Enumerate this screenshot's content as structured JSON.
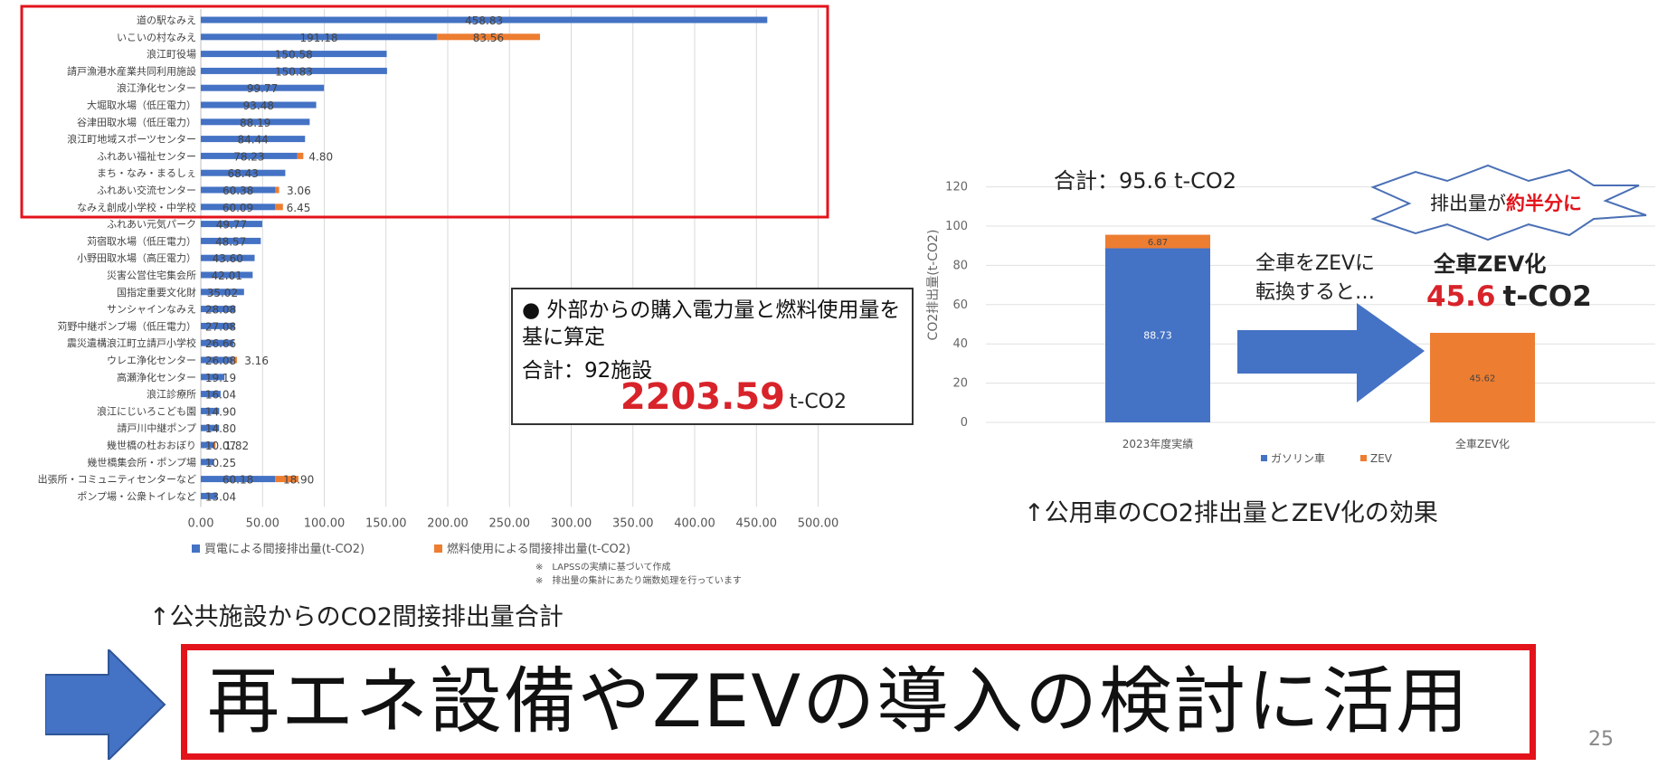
{
  "chart_data": [
    {
      "type": "bar",
      "orientation": "horizontal",
      "stacked": true,
      "categories": [
        "道の駅なみえ",
        "いこいの村なみえ",
        "浪江町役場",
        "請戸漁港水産業共同利用施設",
        "浪江浄化センター",
        "大堀取水場（低圧電力）",
        "谷津田取水場（低圧電力）",
        "浪江町地域スポーツセンター",
        "ふれあい福祉センター",
        "まち・なみ・まるしぇ",
        "ふれあい交流センター",
        "なみえ創成小学校・中学校",
        "ふれあい元気パーク",
        "苅宿取水場（低圧電力）",
        "小野田取水場（高圧電力）",
        "災害公営住宅集会所",
        "国指定重要文化財",
        "サンシャインなみえ",
        "苅野中継ポンプ場（低圧電力）",
        "震災遺構浪江町立請戸小学校",
        "ウレエ浄化センター",
        "高瀬浄化センター",
        "浪江診療所",
        "浪江にじいろこども園",
        "請戸川中継ポンプ",
        "幾世橋の杜おおぼり",
        "幾世橋集会所・ポンプ場",
        "出張所・コミュニティセンターなど",
        "ポンプ場・公衆トイレなど"
      ],
      "series": [
        {
          "name": "買電による間接排出量(t-CO2)",
          "color": "#4472c4",
          "values": [
            458.83,
            191.18,
            150.58,
            150.83,
            99.77,
            93.48,
            88.19,
            84.44,
            78.23,
            68.43,
            60.38,
            60.09,
            49.77,
            48.57,
            43.6,
            42.01,
            35.02,
            28.08,
            27.08,
            26.66,
            26.08,
            19.19,
            16.04,
            14.9,
            14.8,
            10.07,
            10.25,
            60.18,
            13.04
          ]
        },
        {
          "name": "燃料使用による間接排出量(t-CO2)",
          "color": "#ed7d31",
          "values": [
            0,
            83.56,
            0,
            0,
            0,
            0,
            0,
            0,
            4.8,
            0,
            3.06,
            6.45,
            0,
            0,
            0,
            0,
            0,
            0,
            0,
            0,
            3.16,
            0,
            0,
            0,
            0,
            1.82,
            0,
            18.9,
            0
          ]
        }
      ],
      "value_labels_blue": [
        "458.83",
        "191.18",
        "150.58",
        "150.83",
        "99.77",
        "93.48",
        "88.19",
        "84.44",
        "78.23",
        "68.43",
        "60.38",
        "60.09",
        "49.77",
        "48.57",
        "43.60",
        "42.01",
        "35.02",
        "28.08",
        "27.08",
        "26.66",
        "26.08",
        "19.19",
        "16.04",
        "14.90",
        "14.80",
        "10.07",
        "10.25",
        "60.18",
        "13.04"
      ],
      "value_labels_orange": [
        "",
        "83.56",
        "",
        "",
        "",
        "",
        "",
        "",
        "4.80",
        "",
        "3.06",
        "6.45",
        "",
        "",
        "",
        "",
        "",
        "",
        "",
        "",
        "3.16",
        "",
        "",
        "",
        "",
        "1.82",
        "",
        "18.90",
        ""
      ],
      "xlim": [
        0,
        500
      ],
      "xticks": [
        "0.00",
        "50.00",
        "100.00",
        "150.00",
        "200.00",
        "250.00",
        "300.00",
        "350.00",
        "400.00",
        "450.00",
        "500.00"
      ],
      "grid": true,
      "legend_position": "bottom",
      "highlight_box_rows": 12,
      "notes": [
        "※　LAPSSの実績に基づいて作成",
        "※　排出量の集計にあたり端数処理を行っています"
      ]
    },
    {
      "type": "bar",
      "stacked": true,
      "categories": [
        "2023年度実績",
        "全車ZEV化"
      ],
      "series": [
        {
          "name": "ガソリン車",
          "color": "#4472c4",
          "values": [
            88.73,
            0
          ]
        },
        {
          "name": "ZEV",
          "color": "#ed7d31",
          "values": [
            6.87,
            45.62
          ]
        }
      ],
      "value_labels": {
        "gasoline": [
          "88.73",
          ""
        ],
        "zev": [
          "6.87",
          "45.62"
        ]
      },
      "ylabel": "CO2排出量(t-CO2)",
      "ylim": [
        0,
        120
      ],
      "yticks": [
        "0",
        "20",
        "40",
        "60",
        "80",
        "100",
        "120"
      ],
      "grid": true,
      "legend_position": "bottom"
    }
  ],
  "info_box": {
    "bullet": "● 外部からの購入電力量と燃料使用量を基に算定",
    "total": "合計：92施設",
    "value": "2203.59",
    "unit": "t-CO2"
  },
  "right_panel": {
    "total_label": "合計：95.6 t-CO2",
    "burst_text_prefix": "排出量が",
    "burst_text_emph": "約半分に",
    "convert_text_1": "全車をZEVに",
    "convert_text_2": "転換すると…",
    "zev_title": "全車ZEV化",
    "zev_value": "45.6",
    "zev_unit": "t-CO2"
  },
  "captions": {
    "left": "↑公共施設からのCO2間接排出量合計",
    "right": "↑公用車のCO2排出量とZEV化の効果"
  },
  "conclusion": "再エネ設備やZEVの導入の検討に活用",
  "page_number": "25",
  "colors": {
    "blue": "#4472c4",
    "orange": "#ed7d31",
    "red": "#e3131b",
    "accent_red": "#d8232a"
  }
}
